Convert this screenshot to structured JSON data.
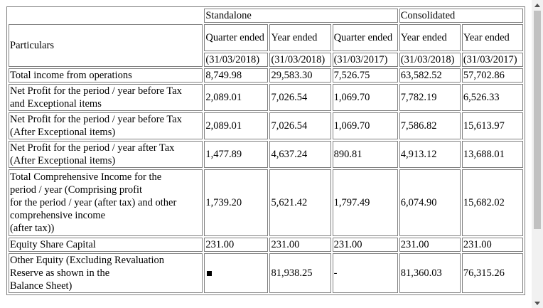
{
  "table": {
    "group_headers": {
      "standalone": "Standalone",
      "consolidated": "Consolidated"
    },
    "particulars_header": "Particulars",
    "col_headers": [
      "Quarter ended",
      "Year ended",
      "Quarter ended",
      "Year ended",
      "Year ended"
    ],
    "dates": [
      "(31/03/2018)",
      "(31/03/2018)",
      "(31/03/2017)",
      "(31/03/2018)",
      "(31/03/2017)"
    ],
    "rows": [
      {
        "label": [
          "Total income from operations"
        ],
        "values": [
          "8,749.98",
          "29,583.30",
          "7,526.75",
          "63,582.52",
          "57,702.86"
        ]
      },
      {
        "label": [
          "Net Profit for the period / year before Tax",
          "and Exceptional items"
        ],
        "values": [
          "2,089.01",
          "7,026.54",
          "1,069.70",
          "7,782.19",
          "6,526.33"
        ]
      },
      {
        "label": [
          "Net Profit for the period / year before Tax",
          "(After Exceptional items)"
        ],
        "values": [
          "2,089.01",
          "7,026.54",
          "1,069.70",
          "7,586.82",
          "15,613.97"
        ]
      },
      {
        "label": [
          "Net Profit for the period / year after Tax",
          "(After Exceptional items)"
        ],
        "values": [
          "1,477.89",
          "4,637.24",
          "890.81",
          "4,913.12",
          "13,688.01"
        ]
      },
      {
        "label": [
          "Total Comprehensive Income for the",
          "period / year (Comprising profit",
          "for the period / year (after tax) and other",
          "comprehensive income",
          "(after tax))"
        ],
        "values": [
          "1,739.20",
          "5,621.42",
          "1,797.49",
          "6,074.90",
          "15,682.02"
        ]
      },
      {
        "label": [
          "Equity Share Capital"
        ],
        "values": [
          "231.00",
          "231.00",
          "231.00",
          "231.00",
          "231.00"
        ]
      },
      {
        "label": [
          "Other Equity (Excluding Revaluation",
          "Reserve as shown in the",
          "Balance Sheet)"
        ],
        "values": [
          "",
          "81,938.25",
          "-",
          "81,360.03",
          "76,315.26"
        ]
      }
    ]
  }
}
